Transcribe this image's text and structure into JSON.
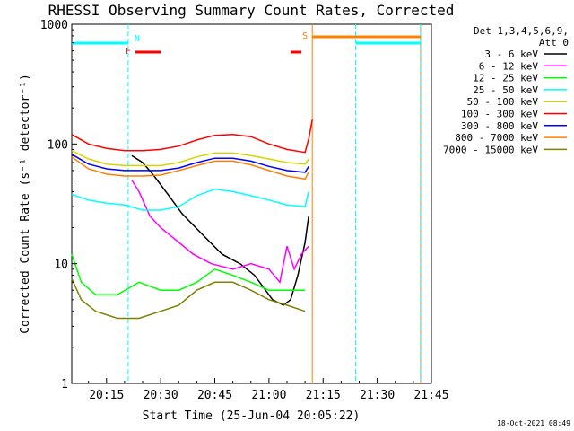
{
  "chart_data": {
    "type": "line",
    "title": "RHESSI Observing Summary Count Rates, Corrected",
    "xlabel": "Start Time (25-Jun-04 20:05:22)",
    "ylabel": "Corrected Count Rate (s⁻¹ detector⁻¹)",
    "y_scale": "log",
    "ylim": [
      1,
      1000
    ],
    "y_ticks": [
      {
        "label": "1",
        "value": 1
      },
      {
        "label": "10",
        "value": 10
      },
      {
        "label": "100",
        "value": 100
      },
      {
        "label": "1000",
        "value": 1000
      }
    ],
    "xlim": [
      "20:05:22",
      "21:45"
    ],
    "x_ticks": [
      "20:15",
      "20:30",
      "20:45",
      "21:00",
      "21:15",
      "21:30",
      "21:45"
    ],
    "legend_header": [
      "Det 1,3,4,5,6,9,",
      "Att 0"
    ],
    "legend_position": "right",
    "series": [
      {
        "name": "3 - 6 keV",
        "color": "#000000",
        "x": [
          "20:22",
          "20:25",
          "20:28",
          "20:32",
          "20:36",
          "20:42",
          "20:47",
          "20:52",
          "20:56",
          "21:01",
          "21:04",
          "21:06",
          "21:08",
          "21:10",
          "21:11"
        ],
        "y": [
          80,
          70,
          55,
          38,
          26,
          17,
          12,
          10,
          8,
          5,
          4.5,
          5,
          8,
          15,
          25
        ]
      },
      {
        "name": "6 - 12 keV",
        "color": "#ff00ff",
        "x": [
          "20:22",
          "20:24",
          "20:27",
          "20:30",
          "20:34",
          "20:39",
          "20:44",
          "20:50",
          "20:55",
          "21:00",
          "21:03",
          "21:05",
          "21:07",
          "21:09",
          "21:11"
        ],
        "y": [
          50,
          40,
          25,
          20,
          16,
          12,
          10,
          9,
          10,
          9,
          7,
          14,
          9,
          12,
          14
        ]
      },
      {
        "name": "12 - 25 keV",
        "color": "#00ff00",
        "x": [
          "20:05:22",
          "20:08",
          "20:12",
          "20:18",
          "20:24",
          "20:30",
          "20:35",
          "20:40",
          "20:45",
          "20:50",
          "20:55",
          "21:00",
          "21:05",
          "21:10"
        ],
        "y": [
          12,
          7,
          5.5,
          5.5,
          7,
          6,
          6,
          7,
          9,
          8,
          7,
          6,
          6,
          6
        ]
      },
      {
        "name": "25 - 50 keV",
        "color": "#00ffff",
        "x": [
          "20:05:22",
          "20:10",
          "20:15",
          "20:20",
          "20:25",
          "20:30",
          "20:35",
          "20:40",
          "20:45",
          "20:50",
          "20:55",
          "21:00",
          "21:05",
          "21:10",
          "21:11"
        ],
        "y": [
          38,
          34,
          32,
          31,
          28,
          28,
          30,
          37,
          42,
          40,
          37,
          34,
          31,
          30,
          40
        ]
      },
      {
        "name": "50 - 100 keV",
        "color": "#d4d400",
        "x": [
          "20:05:22",
          "20:10",
          "20:15",
          "20:20",
          "20:25",
          "20:30",
          "20:35",
          "20:40",
          "20:45",
          "20:50",
          "20:55",
          "21:00",
          "21:05",
          "21:10",
          "21:11"
        ],
        "y": [
          88,
          75,
          68,
          66,
          66,
          66,
          70,
          78,
          84,
          84,
          80,
          75,
          70,
          68,
          75
        ]
      },
      {
        "name": "100 - 300 keV",
        "color": "#ff0000",
        "x": [
          "20:05:22",
          "20:10",
          "20:15",
          "20:20",
          "20:25",
          "20:30",
          "20:35",
          "20:40",
          "20:45",
          "20:50",
          "20:55",
          "21:00",
          "21:05",
          "21:10",
          "21:11",
          "21:12"
        ],
        "y": [
          120,
          100,
          92,
          88,
          88,
          90,
          96,
          108,
          118,
          120,
          115,
          100,
          90,
          85,
          110,
          160
        ]
      },
      {
        "name": "300 - 800 keV",
        "color": "#0000ff",
        "x": [
          "20:05:22",
          "20:10",
          "20:15",
          "20:20",
          "20:25",
          "20:30",
          "20:35",
          "20:40",
          "20:45",
          "20:50",
          "20:55",
          "21:00",
          "21:05",
          "21:10",
          "21:11"
        ],
        "y": [
          82,
          68,
          62,
          60,
          60,
          60,
          63,
          70,
          76,
          76,
          72,
          65,
          60,
          58,
          65
        ]
      },
      {
        "name": "800 - 7000 keV",
        "color": "#ff8000",
        "x": [
          "20:05:22",
          "20:10",
          "20:15",
          "20:20",
          "20:25",
          "20:30",
          "20:35",
          "20:40",
          "20:45",
          "20:50",
          "20:55",
          "21:00",
          "21:05",
          "21:10",
          "21:11"
        ],
        "y": [
          78,
          62,
          56,
          54,
          54,
          55,
          60,
          66,
          72,
          72,
          67,
          60,
          54,
          51,
          58
        ]
      },
      {
        "name": "7000 - 15000 keV",
        "color": "#808000",
        "x": [
          "20:05:22",
          "20:08",
          "20:12",
          "20:18",
          "20:24",
          "20:30",
          "20:35",
          "20:40",
          "20:45",
          "20:50",
          "20:55",
          "21:00",
          "21:05",
          "21:10"
        ],
        "y": [
          7.5,
          5,
          4,
          3.5,
          3.5,
          4,
          4.5,
          6,
          7,
          7,
          6,
          5,
          4.5,
          4
        ]
      }
    ],
    "annotations": [
      {
        "label": "N",
        "color": "#00ffff",
        "bars": [
          [
            "20:05:22",
            "20:21"
          ]
        ],
        "vlines": [
          "20:21"
        ]
      },
      {
        "label": "F",
        "color": "#ff0000",
        "bars": [
          [
            "20:23",
            "20:30"
          ],
          [
            "21:06",
            "21:09"
          ]
        ]
      },
      {
        "label": "S",
        "color": "#ff8000",
        "bars": [
          [
            "21:12",
            "21:42"
          ]
        ],
        "vlines": [
          "21:12",
          "21:42"
        ]
      },
      {
        "color": "#00ffff",
        "bars": [
          [
            "21:24",
            "21:42"
          ]
        ],
        "vlines": [
          "21:24",
          "21:42"
        ]
      }
    ]
  },
  "footer_date": "18-Oct-2021 08:49"
}
